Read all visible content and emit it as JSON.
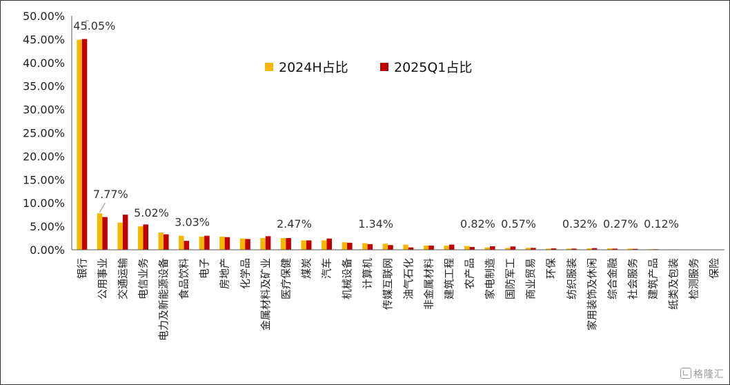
{
  "chart_data": {
    "type": "bar",
    "categories": [
      "银行",
      "公用事业",
      "交通运输",
      "电信业务",
      "电力及新能源设备",
      "食品饮料",
      "电子",
      "房地产",
      "化学品",
      "金属材料及矿业",
      "医疗保健",
      "煤炭",
      "汽车",
      "机械设备",
      "计算机",
      "传媒互联网",
      "油气石化",
      "非金属材料",
      "建筑工程",
      "农产品",
      "家电制造",
      "国防军工",
      "商业贸易",
      "环保",
      "纺织服装",
      "家用装饰及休闲",
      "综合金融",
      "社会服务",
      "建筑产品",
      "纸类及包装",
      "检测服务",
      "保险"
    ],
    "series": [
      {
        "name": "2024H占比",
        "color": "#f5b800",
        "values": [
          44.9,
          7.8,
          5.8,
          5.0,
          3.7,
          3.0,
          2.8,
          2.8,
          2.4,
          2.5,
          2.5,
          2.0,
          2.0,
          1.6,
          1.4,
          1.3,
          1.1,
          0.9,
          0.9,
          0.8,
          0.5,
          0.4,
          0.4,
          0.25,
          0.25,
          0.3,
          0.3,
          0.25,
          0.12,
          0.08,
          0.05,
          0.03
        ]
      },
      {
        "name": "2025Q1占比",
        "color": "#c00000",
        "values": [
          45.05,
          7.0,
          7.5,
          5.4,
          3.3,
          1.9,
          3.0,
          2.7,
          2.3,
          2.9,
          2.5,
          2.0,
          2.4,
          1.5,
          1.2,
          1.0,
          0.5,
          0.9,
          1.1,
          0.6,
          0.75,
          0.7,
          0.4,
          0.3,
          0.25,
          0.35,
          0.25,
          0.2,
          0.12,
          0.08,
          0.05,
          0.03
        ]
      }
    ],
    "y_ticks": [
      "0.00%",
      "5.00%",
      "10.00%",
      "15.00%",
      "20.00%",
      "25.00%",
      "30.00%",
      "35.00%",
      "40.00%",
      "45.00%",
      "50.00%"
    ],
    "ylim": [
      0,
      50
    ],
    "grid": false,
    "legend_position": "top-center",
    "annotations": [
      {
        "text": "45.05%",
        "category_index": 0,
        "value": 45.05
      },
      {
        "text": "7.77%",
        "category_index": 1,
        "value": 7.77
      },
      {
        "text": "5.02%",
        "category_index": 3,
        "value": 5.02
      },
      {
        "text": "3.03%",
        "category_index": 5,
        "value": 3.03
      },
      {
        "text": "2.47%",
        "category_index": 10,
        "value": 2.47
      },
      {
        "text": "1.34%",
        "category_index": 14,
        "value": 1.34
      },
      {
        "text": "0.82%",
        "category_index": 19,
        "value": 0.82
      },
      {
        "text": "0.57%",
        "category_index": 21,
        "value": 0.57
      },
      {
        "text": "0.32%",
        "category_index": 24,
        "value": 0.32
      },
      {
        "text": "0.27%",
        "category_index": 26,
        "value": 0.27
      },
      {
        "text": "0.12%",
        "category_index": 28,
        "value": 0.12
      }
    ]
  },
  "watermark": {
    "text": "格隆汇",
    "icon": "glh-logo-icon"
  }
}
